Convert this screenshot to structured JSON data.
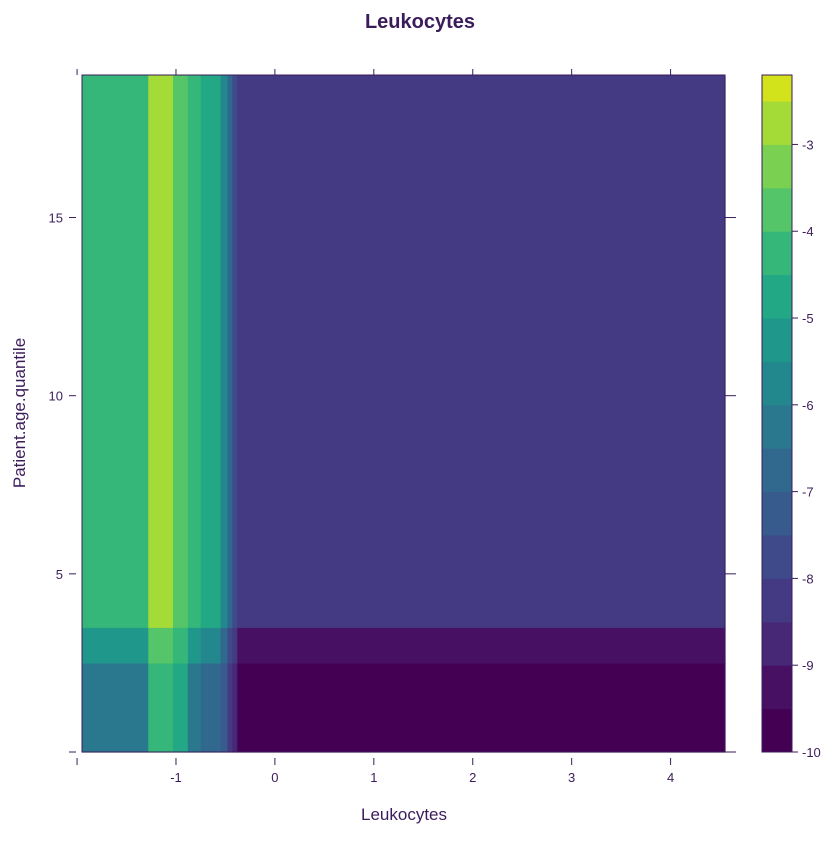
{
  "chart_data": {
    "type": "heatmap",
    "title": "Leukocytes",
    "xlabel": "Leukocytes",
    "ylabel": "Patient.age.quantile",
    "xlim": [
      -1.95,
      4.55
    ],
    "ylim": [
      0.0,
      19.0
    ],
    "xticks": [
      -1,
      0,
      1,
      2,
      3,
      4
    ],
    "yticks": [
      5,
      10,
      15
    ],
    "x_boundaries": [
      -1.95,
      -1.28,
      -1.03,
      -0.88,
      -0.75,
      -0.55,
      -0.48,
      -0.43,
      -0.38,
      4.55
    ],
    "y_boundaries": [
      0.0,
      2.5,
      3.5,
      19.0
    ],
    "z_rows": [
      {
        "y_range": [
          0.0,
          2.5
        ],
        "values": [
          -6.2,
          -4.2,
          -4.7,
          -6.2,
          -6.6,
          -7.2,
          -8.2,
          -9.0,
          -9.9
        ]
      },
      {
        "y_range": [
          2.5,
          3.5
        ],
        "values": [
          -5.5,
          -3.8,
          -4.4,
          -5.5,
          -6.0,
          -6.6,
          -7.6,
          -8.4,
          -9.3
        ]
      },
      {
        "y_range": [
          3.5,
          19.0
        ],
        "values": [
          -4.3,
          -2.6,
          -4.0,
          -4.3,
          -5.0,
          -5.8,
          -6.9,
          -7.6,
          -8.2
        ]
      }
    ],
    "colorbar": {
      "zlim": [
        -10.0,
        -2.2
      ],
      "levels": [
        -10.0,
        -9.5,
        -9.0,
        -8.5,
        -8.0,
        -7.5,
        -7.0,
        -6.5,
        -6.0,
        -5.5,
        -5.0,
        -4.5,
        -4.0,
        -3.5,
        -3.0,
        -2.5,
        -2.2
      ],
      "colors": [
        "#440154",
        "#471063",
        "#472877",
        "#443A83",
        "#3E4A89",
        "#375B8D",
        "#31688E",
        "#2A788E",
        "#23888E",
        "#1F988B",
        "#22A884",
        "#35B779",
        "#54C568",
        "#7AD151",
        "#A5DB36",
        "#D2E21B",
        "#FDE725"
      ],
      "ticks": [
        -10,
        -9,
        -8,
        -7,
        -6,
        -5,
        -4,
        -3
      ],
      "tick_labels": [
        "-10",
        "-9",
        "-8",
        "-7",
        "-6",
        "-5",
        "-4",
        "-3"
      ]
    },
    "xtick_labels": [
      "-1",
      "0",
      "1",
      "2",
      "3",
      "4"
    ],
    "ytick_labels": [
      "5",
      "10",
      "15"
    ],
    "grid": false,
    "legend": "right (colorbar)"
  }
}
